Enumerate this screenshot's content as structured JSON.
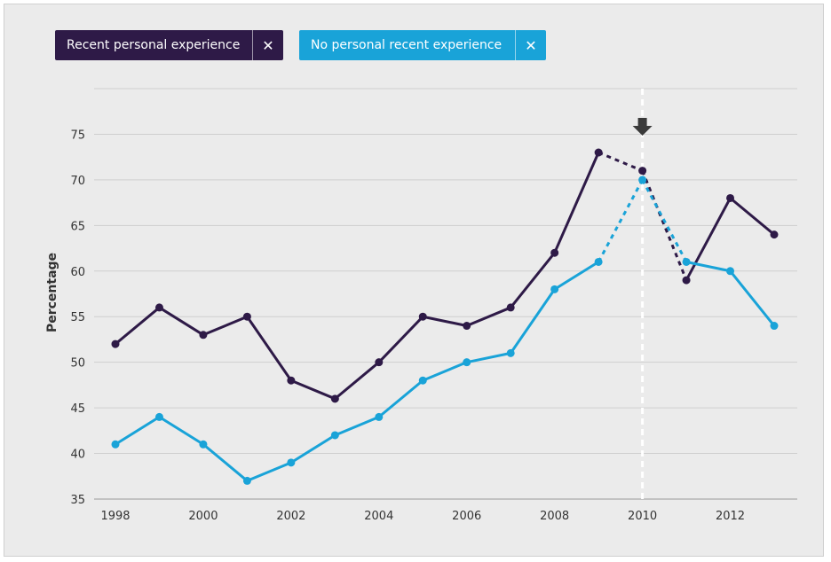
{
  "legend": {
    "recent_label": "Recent personal experience",
    "norecent_label": "No personal recent experience",
    "remove_symbol": "✕"
  },
  "colors": {
    "recent": "#2e1a47",
    "norecent": "#19a3d8",
    "marker": "#3a3a3a"
  },
  "chart_data": {
    "type": "line",
    "title": "",
    "xlabel": "",
    "ylabel": "Percentage",
    "ylim": [
      35,
      80
    ],
    "yticks": [
      35,
      40,
      45,
      50,
      55,
      60,
      65,
      70,
      75
    ],
    "xlim": [
      1997.5,
      2013.5
    ],
    "xticks": [
      1998,
      2000,
      2002,
      2004,
      2006,
      2008,
      2010,
      2012
    ],
    "marker_year": 2010,
    "marker_icon": "down-arrow-icon",
    "series": [
      {
        "name": "Recent personal experience",
        "color": "#2e1a47",
        "x": [
          1998,
          1999,
          2000,
          2001,
          2002,
          2003,
          2004,
          2005,
          2006,
          2007,
          2008,
          2009,
          2010,
          2011,
          2012,
          2013
        ],
        "values": [
          52,
          56,
          53,
          55,
          48,
          46,
          50,
          55,
          54,
          56,
          62,
          73,
          71,
          59,
          68,
          64
        ],
        "dashed_segments": [
          [
            2009,
            2010
          ],
          [
            2010,
            2011
          ]
        ]
      },
      {
        "name": "No personal recent experience",
        "color": "#19a3d8",
        "x": [
          1998,
          1999,
          2000,
          2001,
          2002,
          2003,
          2004,
          2005,
          2006,
          2007,
          2008,
          2009,
          2010,
          2011,
          2012,
          2013
        ],
        "values": [
          41,
          44,
          41,
          37,
          39,
          42,
          44,
          48,
          50,
          51,
          58,
          61,
          70,
          61,
          60,
          54
        ],
        "dashed_segments": [
          [
            2009,
            2010
          ],
          [
            2010,
            2011
          ]
        ]
      }
    ]
  }
}
